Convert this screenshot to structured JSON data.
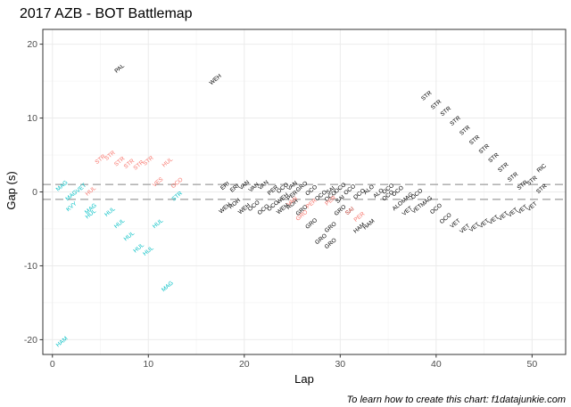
{
  "chart_data": {
    "type": "scatter",
    "title": "2017 AZB - BOT Battlemap",
    "xlabel": "Lap",
    "ylabel": "Gap (s)",
    "caption": "To learn how to create this chart: f1datajunkie.com",
    "xlim": [
      -1,
      53.5
    ],
    "ylim": [
      -22,
      22
    ],
    "xticks": [
      0,
      10,
      20,
      30,
      40,
      50
    ],
    "yticks": [
      -20,
      -10,
      0,
      10,
      20
    ],
    "grid": true,
    "reference_lines_y": [
      1,
      -1
    ],
    "colors": {
      "ahead": "#f8766d",
      "behind": "#00bfc4",
      "neutral": "#000000",
      "refline": "#b3b3b3"
    },
    "series": [
      {
        "category": "neutral",
        "points": [
          {
            "x": 7,
            "y": 16.7,
            "label": "PAL"
          },
          {
            "x": 17,
            "y": 15.2,
            "label": "WEH"
          },
          {
            "x": 18,
            "y": 0.8,
            "label": "ERI"
          },
          {
            "x": 19,
            "y": 0.5,
            "label": "ERI"
          },
          {
            "x": 20,
            "y": 0.9,
            "label": "VAN"
          },
          {
            "x": 21,
            "y": 0.6,
            "label": "VAN"
          },
          {
            "x": 22,
            "y": 0.9,
            "label": "VAN"
          },
          {
            "x": 18,
            "y": -2.2,
            "label": "WEH"
          },
          {
            "x": 19,
            "y": -1.6,
            "label": "ROH"
          },
          {
            "x": 20,
            "y": -2.3,
            "label": "WEH"
          },
          {
            "x": 21,
            "y": -1.9,
            "label": "OCO"
          },
          {
            "x": 22,
            "y": -2.4,
            "label": "OCO"
          },
          {
            "x": 23,
            "y": -1.9,
            "label": "OCO"
          },
          {
            "x": 24,
            "y": -0.9,
            "label": "WEH"
          },
          {
            "x": 24,
            "y": 0.5,
            "label": "OCO"
          },
          {
            "x": 25,
            "y": 0.8,
            "label": "VAN"
          },
          {
            "x": 23,
            "y": 0.2,
            "label": "PER"
          },
          {
            "x": 24,
            "y": -2.3,
            "label": "WEH"
          },
          {
            "x": 25,
            "y": -1.7,
            "label": "ROH"
          },
          {
            "x": 25,
            "y": -0.5,
            "label": "PER"
          },
          {
            "x": 26,
            "y": 0.7,
            "label": "GRO"
          },
          {
            "x": 27,
            "y": 0.2,
            "label": "OCO"
          },
          {
            "x": 28,
            "y": -0.5,
            "label": "OCO"
          },
          {
            "x": 29,
            "y": -0.6,
            "label": "OCO"
          },
          {
            "x": 30,
            "y": 0.5,
            "label": "OCO"
          },
          {
            "x": 29,
            "y": 0.2,
            "label": "SAI"
          },
          {
            "x": 30,
            "y": -1.0,
            "label": "SAI"
          },
          {
            "x": 31,
            "y": 0.3,
            "label": "OCO"
          },
          {
            "x": 32,
            "y": -0.3,
            "label": "OCO"
          },
          {
            "x": 33,
            "y": 0.3,
            "label": "ALO"
          },
          {
            "x": 34,
            "y": -0.2,
            "label": "ALO"
          },
          {
            "x": 35,
            "y": -0.5,
            "label": "OCO"
          },
          {
            "x": 35,
            "y": 0.4,
            "label": "OCO"
          },
          {
            "x": 36,
            "y": 0.1,
            "label": "OCO"
          },
          {
            "x": 37,
            "y": -0.8,
            "label": "MAG"
          },
          {
            "x": 38,
            "y": -0.3,
            "label": "OCO"
          },
          {
            "x": 36,
            "y": -1.9,
            "label": "ALO"
          },
          {
            "x": 37,
            "y": -2.6,
            "label": "VET"
          },
          {
            "x": 38,
            "y": -2.3,
            "label": "VET"
          },
          {
            "x": 39,
            "y": -1.3,
            "label": "MAG"
          },
          {
            "x": 40,
            "y": -2.3,
            "label": "OCO"
          },
          {
            "x": 41,
            "y": -3.6,
            "label": "OCO"
          },
          {
            "x": 42,
            "y": -4.3,
            "label": "VET"
          },
          {
            "x": 43,
            "y": -5.0,
            "label": "VET"
          },
          {
            "x": 44,
            "y": -4.8,
            "label": "VET"
          },
          {
            "x": 45,
            "y": -4.3,
            "label": "VET"
          },
          {
            "x": 46,
            "y": -3.8,
            "label": "VET"
          },
          {
            "x": 47,
            "y": -3.3,
            "label": "VET"
          },
          {
            "x": 48,
            "y": -2.8,
            "label": "VET"
          },
          {
            "x": 49,
            "y": -2.4,
            "label": "VET"
          },
          {
            "x": 50,
            "y": -2.0,
            "label": "VET"
          },
          {
            "x": 26,
            "y": -2.5,
            "label": "GRO"
          },
          {
            "x": 27,
            "y": -4.3,
            "label": "GRO"
          },
          {
            "x": 28,
            "y": -6.4,
            "label": "GRO"
          },
          {
            "x": 29,
            "y": -7.0,
            "label": "GRO"
          },
          {
            "x": 29,
            "y": -4.8,
            "label": "GRO"
          },
          {
            "x": 30,
            "y": -2.5,
            "label": "GRO"
          },
          {
            "x": 31,
            "y": -2.6,
            "label": "SAI"
          },
          {
            "x": 32,
            "y": -4.9,
            "label": "HAM"
          },
          {
            "x": 33,
            "y": -4.4,
            "label": "HAM"
          },
          {
            "x": 39,
            "y": 13.0,
            "label": "STR"
          },
          {
            "x": 40,
            "y": 11.8,
            "label": "STR"
          },
          {
            "x": 41,
            "y": 10.9,
            "label": "STR"
          },
          {
            "x": 42,
            "y": 9.6,
            "label": "STR"
          },
          {
            "x": 43,
            "y": 8.3,
            "label": "STR"
          },
          {
            "x": 44,
            "y": 7.0,
            "label": "STR"
          },
          {
            "x": 45,
            "y": 5.8,
            "label": "STR"
          },
          {
            "x": 46,
            "y": 4.6,
            "label": "STR"
          },
          {
            "x": 47,
            "y": 3.3,
            "label": "STR"
          },
          {
            "x": 48,
            "y": 2.0,
            "label": "STR"
          },
          {
            "x": 49,
            "y": 0.9,
            "label": "STR"
          },
          {
            "x": 50,
            "y": 1.5,
            "label": "STR"
          },
          {
            "x": 51,
            "y": 3.2,
            "label": "RIC"
          },
          {
            "x": 51,
            "y": 0.4,
            "label": "STR"
          }
        ]
      },
      {
        "category": "ahead",
        "points": [
          {
            "x": 5,
            "y": 4.4,
            "label": "STR"
          },
          {
            "x": 6,
            "y": 4.9,
            "label": "STR"
          },
          {
            "x": 7,
            "y": 4.1,
            "label": "STR"
          },
          {
            "x": 8,
            "y": 3.8,
            "label": "STR"
          },
          {
            "x": 9,
            "y": 3.6,
            "label": "STR"
          },
          {
            "x": 10,
            "y": 4.2,
            "label": "STR"
          },
          {
            "x": 12,
            "y": 4.0,
            "label": "HUL"
          },
          {
            "x": 13,
            "y": 1.2,
            "label": "OCO"
          },
          {
            "x": 11,
            "y": 1.3,
            "label": "VES"
          },
          {
            "x": 4,
            "y": 0.1,
            "label": "HUL"
          },
          {
            "x": 25,
            "y": -1.3,
            "label": "VAN"
          },
          {
            "x": 27,
            "y": -1.6,
            "label": "PER"
          },
          {
            "x": 29,
            "y": -1.2,
            "label": "PER"
          },
          {
            "x": 26,
            "y": -3.2,
            "label": "GRO"
          },
          {
            "x": 31,
            "y": -2.6,
            "label": "SAI"
          },
          {
            "x": 32,
            "y": -3.4,
            "label": "PER"
          }
        ]
      },
      {
        "category": "behind",
        "points": [
          {
            "x": 1,
            "y": 0.8,
            "label": "MAG"
          },
          {
            "x": 3,
            "y": 0.5,
            "label": "VET"
          },
          {
            "x": 2,
            "y": -0.5,
            "label": "MAG"
          },
          {
            "x": 2,
            "y": -2.0,
            "label": "KVY"
          },
          {
            "x": 4,
            "y": -2.3,
            "label": "MAG"
          },
          {
            "x": 4,
            "y": -3.0,
            "label": "HUL"
          },
          {
            "x": 6,
            "y": -2.7,
            "label": "HUL"
          },
          {
            "x": 7,
            "y": -4.3,
            "label": "HUL"
          },
          {
            "x": 8,
            "y": -6.0,
            "label": "HUL"
          },
          {
            "x": 9,
            "y": -7.6,
            "label": "HUL"
          },
          {
            "x": 10,
            "y": -8.0,
            "label": "HUL"
          },
          {
            "x": 11,
            "y": -4.3,
            "label": "HUL"
          },
          {
            "x": 13,
            "y": -0.6,
            "label": "STR"
          },
          {
            "x": 12,
            "y": -12.8,
            "label": "MAG"
          },
          {
            "x": 1,
            "y": -20.3,
            "label": "HAM"
          }
        ]
      }
    ]
  }
}
